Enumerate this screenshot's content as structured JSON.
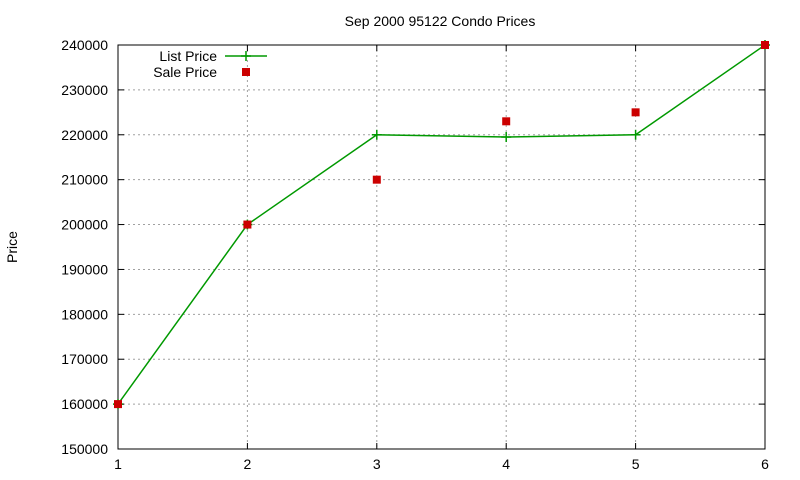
{
  "chart_data": {
    "type": "line",
    "title": "Sep 2000 95122 Condo Prices",
    "xlabel": "",
    "ylabel": "Price",
    "x": [
      1,
      2,
      3,
      4,
      5,
      6
    ],
    "xlim": [
      1,
      6
    ],
    "ylim": [
      150000,
      240000
    ],
    "xticks": [
      1,
      2,
      3,
      4,
      5,
      6
    ],
    "yticks": [
      150000,
      160000,
      170000,
      180000,
      190000,
      200000,
      210000,
      220000,
      230000,
      240000
    ],
    "grid": true,
    "legend_position": "top-left",
    "series": [
      {
        "name": "List Price",
        "style": "linespoints",
        "marker": "plus",
        "color": "#009900",
        "values": [
          160000,
          200000,
          220000,
          219500,
          220000,
          240000
        ]
      },
      {
        "name": "Sale Price",
        "style": "points",
        "marker": "square",
        "color": "#cc0000",
        "values": [
          160000,
          200000,
          210000,
          223000,
          225000,
          240000
        ]
      }
    ]
  }
}
